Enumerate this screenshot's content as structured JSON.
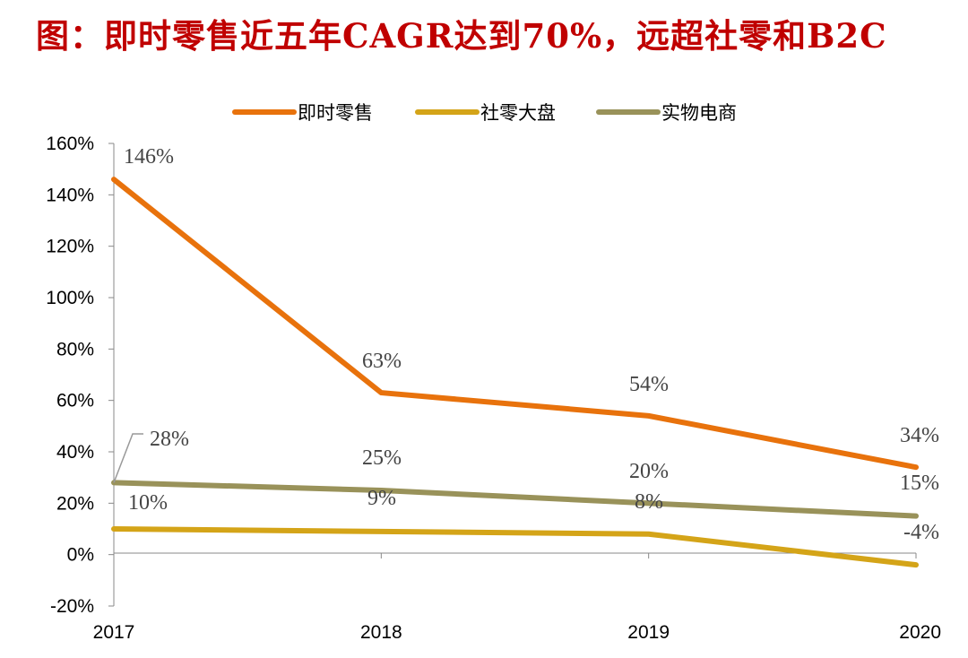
{
  "title": "图：即时零售近五年CAGR达到70%，远超社零和B2C",
  "chart_data": {
    "type": "line",
    "categories": [
      "2017",
      "2018",
      "2019",
      "2020"
    ],
    "ylim": [
      -20,
      160
    ],
    "yticks": [
      -20,
      0,
      20,
      40,
      60,
      80,
      100,
      120,
      140,
      160
    ],
    "ytick_labels": [
      "-20%",
      "0%",
      "20%",
      "40%",
      "60%",
      "80%",
      "100%",
      "120%",
      "140%",
      "160%"
    ],
    "legend_position": "top-center",
    "series": [
      {
        "name": "即时零售",
        "color": "#e8720c",
        "values": [
          146,
          63,
          54,
          34
        ],
        "labels": [
          "146%",
          "63%",
          "54%",
          "34%"
        ]
      },
      {
        "name": "社零大盘",
        "color": "#d4a418",
        "values": [
          10,
          9,
          8,
          -4
        ],
        "labels": [
          "10%",
          "9%",
          "8%",
          "-4%"
        ]
      },
      {
        "name": "实物电商",
        "color": "#99925a",
        "values": [
          28,
          25,
          20,
          15
        ],
        "labels": [
          "28%",
          "25%",
          "20%",
          "15%"
        ]
      }
    ]
  }
}
